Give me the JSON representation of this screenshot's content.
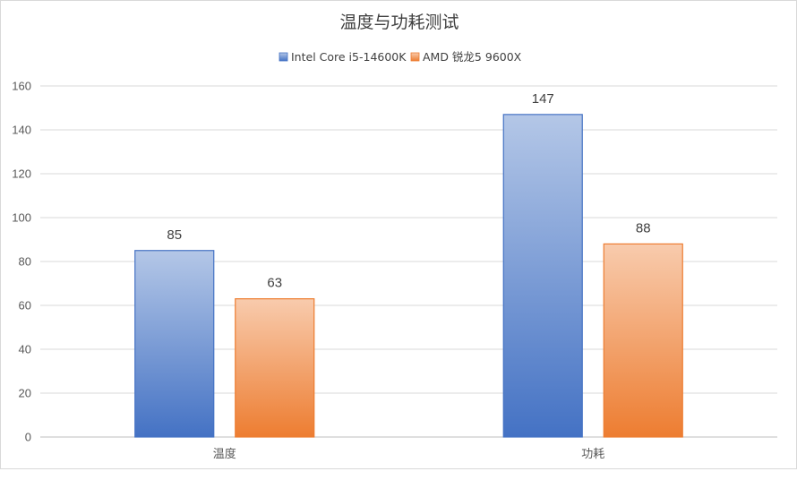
{
  "chart_data": {
    "type": "bar",
    "title": "温度与功耗测试",
    "categories": [
      "温度",
      "功耗"
    ],
    "series": [
      {
        "name": "Intel Core i5-14600K",
        "values": [
          85,
          147
        ],
        "color_top": "#b4c7e7",
        "color_bottom": "#4472c4",
        "stroke": "#4472c4"
      },
      {
        "name": "AMD 锐龙5 9600X",
        "values": [
          63,
          88
        ],
        "color_top": "#f8cbad",
        "color_bottom": "#ed7d31",
        "stroke": "#ed7d31"
      }
    ],
    "ylim": [
      0,
      160
    ],
    "yticks": [
      0,
      20,
      40,
      60,
      80,
      100,
      120,
      140,
      160
    ],
    "grid": true,
    "legend_position": "top",
    "data_labels": true
  }
}
